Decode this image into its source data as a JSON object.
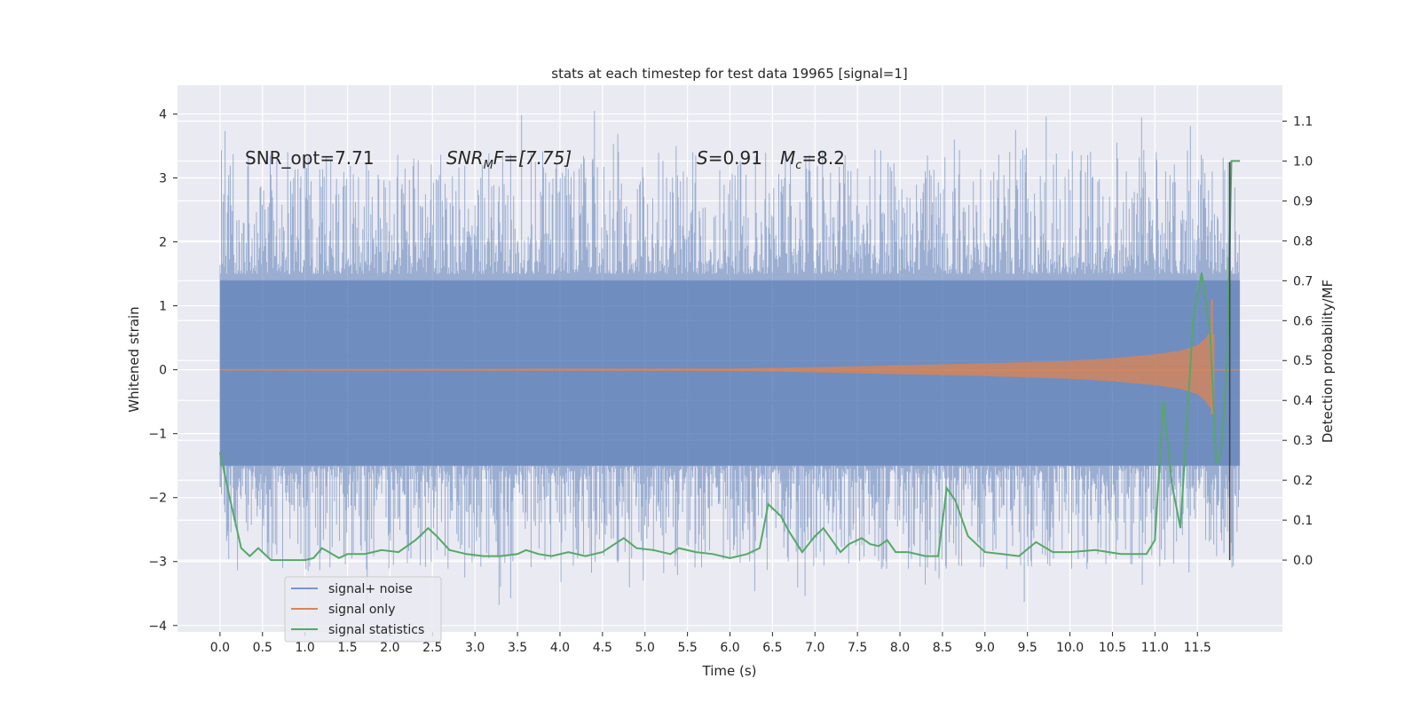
{
  "chart_data": {
    "type": "line",
    "title": "stats at each timestep for test data 19965 [signal=1]",
    "xlabel": "Time (s)",
    "ylabel_left": "Whitened strain",
    "ylabel_right": "Detection probability/MF",
    "xlim": [
      -0.5,
      12.5
    ],
    "ylim_left": [
      -4.1,
      4.45
    ],
    "ylim_right": [
      -0.18,
      1.19
    ],
    "x_ticks": [
      "0.0",
      "0.5",
      "1.0",
      "1.5",
      "2.0",
      "2.5",
      "3.0",
      "3.5",
      "4.0",
      "4.5",
      "5.0",
      "5.5",
      "6.0",
      "6.5",
      "7.0",
      "7.5",
      "8.0",
      "8.5",
      "9.0",
      "9.5",
      "10.0",
      "10.5",
      "11.0",
      "11.5"
    ],
    "y_ticks_left": [
      "4",
      "3",
      "2",
      "1",
      "0",
      "−1",
      "−2",
      "−3",
      "−4"
    ],
    "y_ticks_right": [
      "1.1",
      "1.0",
      "0.9",
      "0.8",
      "0.7",
      "0.6",
      "0.5",
      "0.4",
      "0.3",
      "0.2",
      "0.1",
      "0.0"
    ],
    "grid": true,
    "legend_position": "lower-left",
    "annotations": {
      "snr_opt": "SNR_opt=7.71",
      "snr_mf_base": "SNR",
      "snr_mf_sub": "M",
      "snr_mf_rest": "F=[7.75]",
      "s_sym": "S",
      "s_val": "=0.91",
      "mc_sym": "M",
      "mc_sub": "c",
      "mc_val": "=8.2"
    },
    "noise_envelope": {
      "t_start": 0.0,
      "t_end": 12.0,
      "dense_band": [
        -1.5,
        1.4
      ],
      "peak_max": 4.1,
      "peak_min": -3.7
    },
    "vertical_marker_x": 11.88,
    "series": [
      {
        "name": "signal+ noise",
        "color": "#4c72b0",
        "alpha": 0.5,
        "note": "dense whitened strain samples"
      },
      {
        "name": "signal only",
        "color": "#dd8452",
        "t": [
          0.0,
          6.0,
          7.0,
          8.0,
          9.0,
          10.0,
          10.5,
          11.0,
          11.3,
          11.5,
          11.6,
          11.65,
          11.7
        ],
        "amplitude": [
          0.01,
          0.02,
          0.04,
          0.07,
          0.1,
          0.14,
          0.18,
          0.24,
          0.3,
          0.38,
          0.5,
          0.6,
          0.55
        ]
      },
      {
        "name": "signal statistics",
        "color": "#55a868",
        "x": [
          0.0,
          0.12,
          0.25,
          0.35,
          0.45,
          0.6,
          0.7,
          0.8,
          1.0,
          1.1,
          1.2,
          1.4,
          1.5,
          1.7,
          1.8,
          1.9,
          2.1,
          2.3,
          2.45,
          2.55,
          2.7,
          2.9,
          3.1,
          3.3,
          3.5,
          3.6,
          3.75,
          3.9,
          4.1,
          4.3,
          4.5,
          4.75,
          4.9,
          5.1,
          5.3,
          5.4,
          5.6,
          5.8,
          6.0,
          6.2,
          6.35,
          6.45,
          6.6,
          6.7,
          6.85,
          7.0,
          7.1,
          7.2,
          7.3,
          7.4,
          7.55,
          7.65,
          7.75,
          7.85,
          7.95,
          8.1,
          8.3,
          8.45,
          8.55,
          8.65,
          8.8,
          9.0,
          9.2,
          9.4,
          9.6,
          9.8,
          10.0,
          10.3,
          10.6,
          10.9,
          11.0,
          11.1,
          11.2,
          11.3,
          11.45,
          11.55,
          11.65,
          11.72,
          11.78,
          11.85,
          11.9,
          12.0
        ],
        "y": [
          0.27,
          0.15,
          0.03,
          0.01,
          0.03,
          0.0,
          0.0,
          0.0,
          0.0,
          0.005,
          0.03,
          0.005,
          0.015,
          0.015,
          0.02,
          0.025,
          0.02,
          0.05,
          0.08,
          0.06,
          0.025,
          0.015,
          0.01,
          0.01,
          0.015,
          0.025,
          0.015,
          0.01,
          0.02,
          0.01,
          0.02,
          0.055,
          0.03,
          0.025,
          0.015,
          0.03,
          0.02,
          0.015,
          0.005,
          0.015,
          0.03,
          0.14,
          0.11,
          0.07,
          0.02,
          0.06,
          0.08,
          0.05,
          0.02,
          0.04,
          0.055,
          0.04,
          0.035,
          0.05,
          0.02,
          0.02,
          0.01,
          0.01,
          0.18,
          0.15,
          0.06,
          0.02,
          0.015,
          0.01,
          0.045,
          0.02,
          0.02,
          0.025,
          0.015,
          0.015,
          0.05,
          0.4,
          0.19,
          0.08,
          0.6,
          0.72,
          0.57,
          0.24,
          0.27,
          0.5,
          1.0,
          1.0
        ]
      }
    ]
  }
}
